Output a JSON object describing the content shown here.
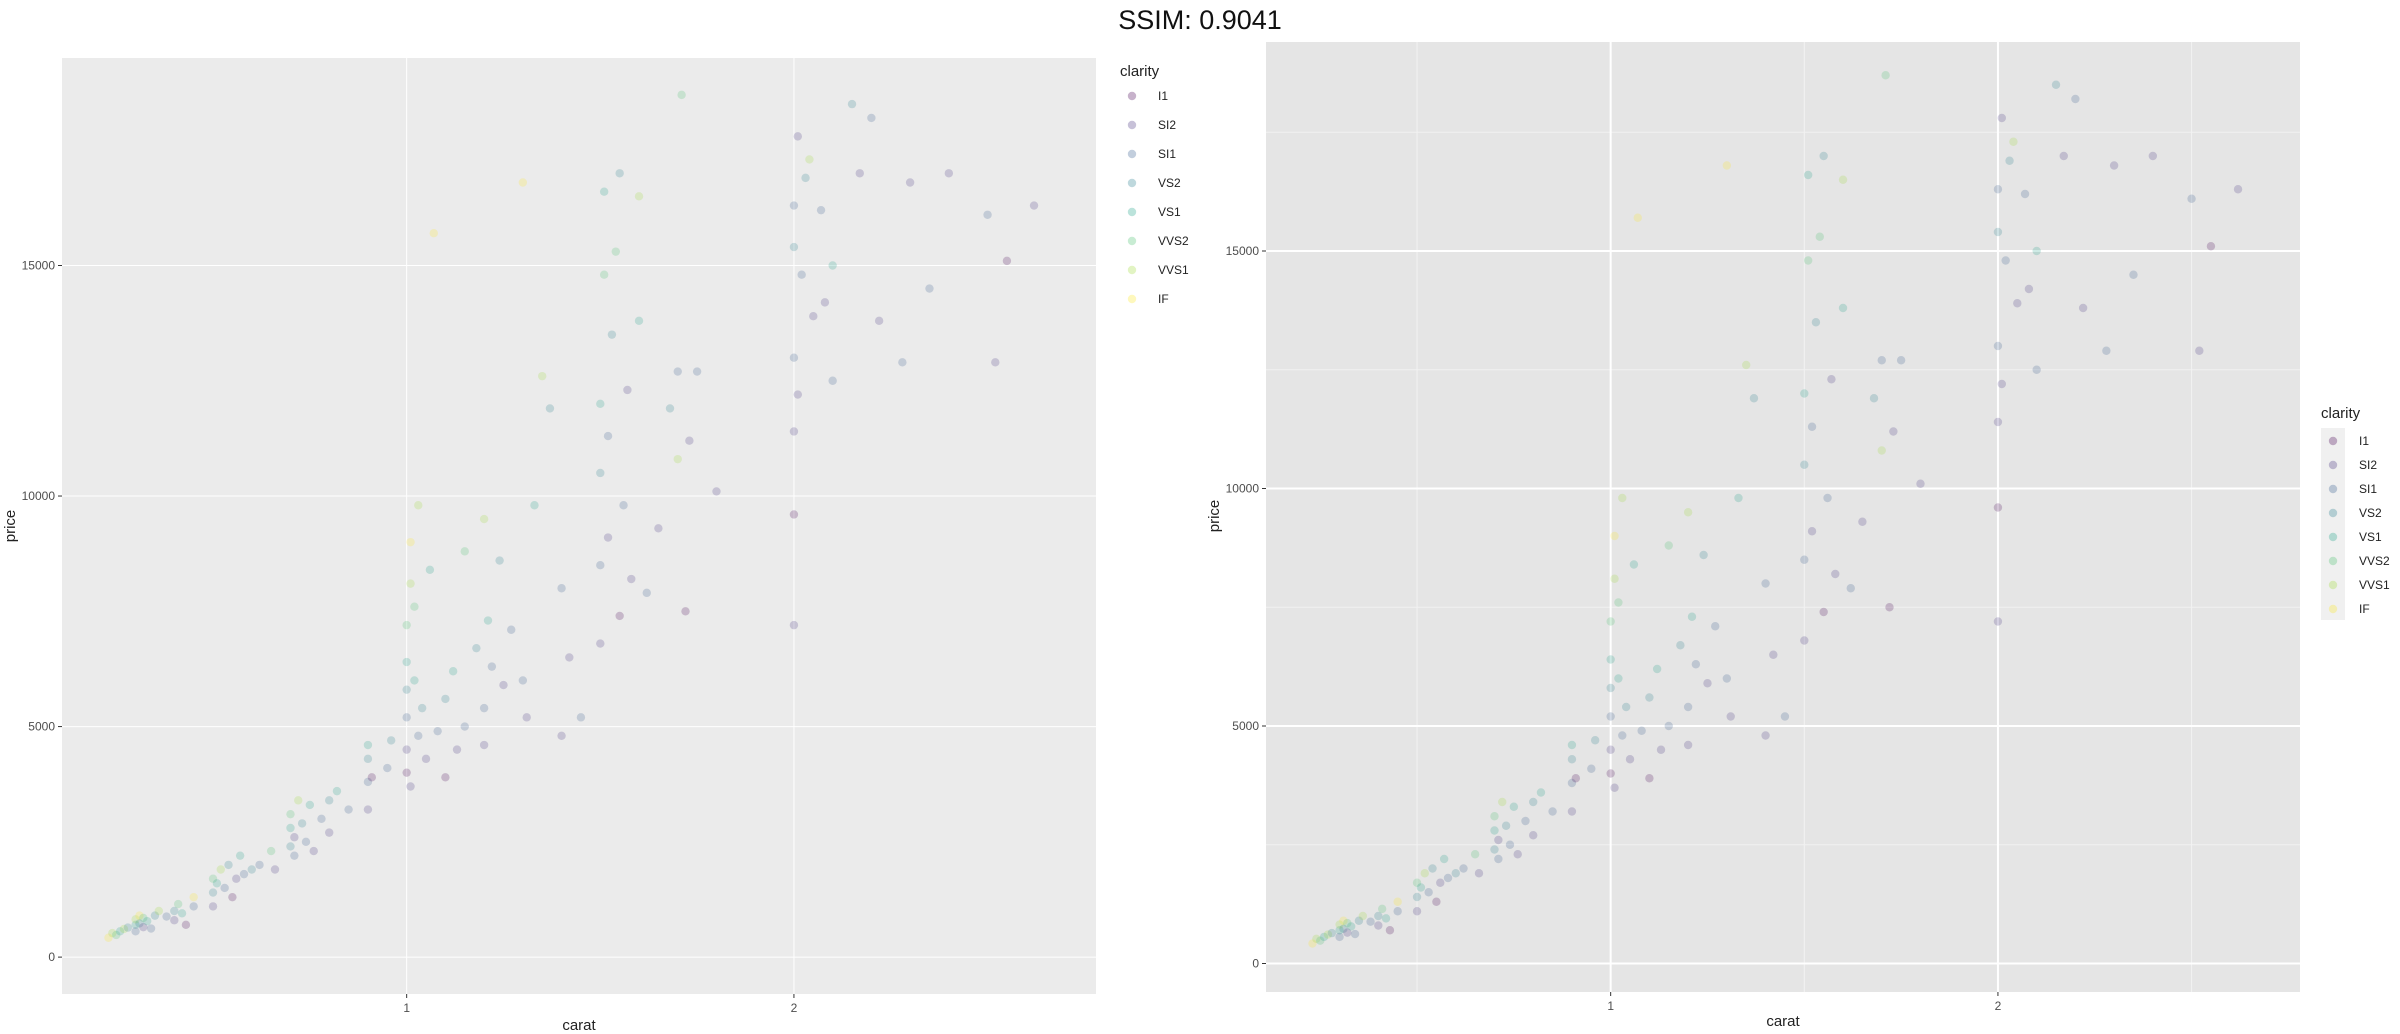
{
  "header": {
    "title": "SSIM: 0.9041"
  },
  "chart_data": [
    {
      "type": "scatter",
      "title": "",
      "xlabel": "carat",
      "ylabel": "price",
      "xlim": [
        0.11,
        2.78
      ],
      "ylim": [
        -800,
        19500
      ],
      "x_ticks": [
        1,
        2
      ],
      "y_ticks": [
        0,
        5000,
        10000,
        15000
      ],
      "x_tick_labels": [
        "1",
        "2"
      ],
      "y_tick_labels": [
        "0",
        "5000",
        "10000",
        "15000"
      ],
      "grid": true,
      "minor_grid": false,
      "legend": {
        "title": "clarity",
        "position": "right-top",
        "boxed": false
      },
      "point_opacity": 0.22
    },
    {
      "type": "scatter",
      "title": "",
      "xlabel": "carat",
      "ylabel": "price",
      "xlim": [
        0.11,
        2.78
      ],
      "ylim": [
        -600,
        19400
      ],
      "x_ticks": [
        1,
        2
      ],
      "y_ticks": [
        0,
        5000,
        10000,
        15000
      ],
      "x_tick_labels": [
        "1",
        "2"
      ],
      "y_tick_labels": [
        "0",
        "5000",
        "10000",
        "15000"
      ],
      "grid": true,
      "minor_grid": true,
      "legend": {
        "title": "clarity",
        "position": "right-center",
        "boxed": true
      },
      "point_opacity": 0.22
    }
  ],
  "clarity_levels": [
    {
      "name": "I1",
      "color": "#440154"
    },
    {
      "name": "SI2",
      "color": "#46337e"
    },
    {
      "name": "SI1",
      "color": "#365c8d"
    },
    {
      "name": "VS2",
      "color": "#277f8e"
    },
    {
      "name": "VS1",
      "color": "#1fa187"
    },
    {
      "name": "VVS2",
      "color": "#4ac16d"
    },
    {
      "name": "VVS1",
      "color": "#a0da39"
    },
    {
      "name": "IF",
      "color": "#fde725"
    }
  ],
  "points": [
    [
      0.23,
      420,
      "IF"
    ],
    [
      0.24,
      520,
      "VVS1"
    ],
    [
      0.25,
      480,
      "VVS2"
    ],
    [
      0.26,
      560,
      "VS1"
    ],
    [
      0.27,
      610,
      "VVS1"
    ],
    [
      0.28,
      640,
      "VS2"
    ],
    [
      0.3,
      700,
      "VS1"
    ],
    [
      0.3,
      560,
      "SI1"
    ],
    [
      0.3,
      820,
      "VVS1"
    ],
    [
      0.31,
      730,
      "VS2"
    ],
    [
      0.31,
      900,
      "IF"
    ],
    [
      0.32,
      650,
      "SI2"
    ],
    [
      0.32,
      850,
      "VVS2"
    ],
    [
      0.33,
      780,
      "VS1"
    ],
    [
      0.34,
      620,
      "SI1"
    ],
    [
      0.35,
      900,
      "VS2"
    ],
    [
      0.36,
      1000,
      "VVS1"
    ],
    [
      0.38,
      880,
      "SI1"
    ],
    [
      0.4,
      1000,
      "VS2"
    ],
    [
      0.4,
      800,
      "SI2"
    ],
    [
      0.41,
      1150,
      "VVS2"
    ],
    [
      0.42,
      950,
      "VS1"
    ],
    [
      0.43,
      700,
      "I1"
    ],
    [
      0.45,
      1100,
      "SI1"
    ],
    [
      0.45,
      1300,
      "IF"
    ],
    [
      0.5,
      1400,
      "VS2"
    ],
    [
      0.5,
      1100,
      "SI2"
    ],
    [
      0.5,
      1700,
      "VVS2"
    ],
    [
      0.51,
      1600,
      "VS1"
    ],
    [
      0.52,
      1900,
      "VVS1"
    ],
    [
      0.53,
      1500,
      "SI1"
    ],
    [
      0.54,
      2000,
      "VS2"
    ],
    [
      0.55,
      1300,
      "I1"
    ],
    [
      0.56,
      1700,
      "SI2"
    ],
    [
      0.57,
      2200,
      "VS1"
    ],
    [
      0.58,
      1800,
      "SI1"
    ],
    [
      0.6,
      1900,
      "VS2"
    ],
    [
      0.62,
      2000,
      "SI1"
    ],
    [
      0.65,
      2300,
      "VVS2"
    ],
    [
      0.66,
      1900,
      "SI2"
    ],
    [
      0.7,
      2400,
      "VS2"
    ],
    [
      0.7,
      2800,
      "VS1"
    ],
    [
      0.7,
      3100,
      "VVS2"
    ],
    [
      0.71,
      2200,
      "SI1"
    ],
    [
      0.72,
      3400,
      "VVS1"
    ],
    [
      0.71,
      2600,
      "SI2"
    ],
    [
      0.73,
      2900,
      "VS2"
    ],
    [
      0.74,
      2500,
      "SI1"
    ],
    [
      0.75,
      3300,
      "VS1"
    ],
    [
      0.76,
      2300,
      "SI2"
    ],
    [
      0.78,
      3000,
      "SI1"
    ],
    [
      0.8,
      3400,
      "VS2"
    ],
    [
      0.8,
      2700,
      "SI2"
    ],
    [
      0.82,
      3600,
      "VS1"
    ],
    [
      0.85,
      3200,
      "SI1"
    ],
    [
      0.9,
      3800,
      "SI1"
    ],
    [
      0.9,
      4300,
      "VS2"
    ],
    [
      0.9,
      3200,
      "SI2"
    ],
    [
      0.9,
      4600,
      "VS1"
    ],
    [
      0.91,
      3900,
      "I1"
    ],
    [
      0.95,
      4100,
      "SI1"
    ],
    [
      0.96,
      4700,
      "VS2"
    ],
    [
      1.0,
      4500,
      "SI2"
    ],
    [
      1.0,
      5200,
      "SI1"
    ],
    [
      1.0,
      5800,
      "VS2"
    ],
    [
      1.0,
      6400,
      "VS1"
    ],
    [
      1.0,
      7200,
      "VVS2"
    ],
    [
      1.01,
      8100,
      "VVS1"
    ],
    [
      1.01,
      9000,
      "IF"
    ],
    [
      1.0,
      4000,
      "I1"
    ],
    [
      1.01,
      3700,
      "SI2"
    ],
    [
      1.02,
      6000,
      "VS1"
    ],
    [
      1.02,
      7600,
      "VVS2"
    ],
    [
      1.03,
      4800,
      "SI1"
    ],
    [
      1.03,
      9800,
      "VVS1"
    ],
    [
      1.04,
      5400,
      "VS2"
    ],
    [
      1.05,
      4300,
      "SI2"
    ],
    [
      1.06,
      8400,
      "VS1"
    ],
    [
      1.07,
      15700,
      "IF"
    ],
    [
      1.08,
      4900,
      "SI1"
    ],
    [
      1.1,
      5600,
      "VS2"
    ],
    [
      1.1,
      3900,
      "I1"
    ],
    [
      1.12,
      6200,
      "VS1"
    ],
    [
      1.13,
      4500,
      "SI2"
    ],
    [
      1.15,
      5000,
      "SI1"
    ],
    [
      1.15,
      8800,
      "VVS2"
    ],
    [
      1.18,
      6700,
      "VS2"
    ],
    [
      1.2,
      5400,
      "SI1"
    ],
    [
      1.2,
      4600,
      "SI2"
    ],
    [
      1.2,
      9500,
      "VVS1"
    ],
    [
      1.21,
      7300,
      "VS1"
    ],
    [
      1.22,
      6300,
      "SI1"
    ],
    [
      1.24,
      8600,
      "VS2"
    ],
    [
      1.25,
      5900,
      "SI2"
    ],
    [
      1.27,
      7100,
      "SI1"
    ],
    [
      1.3,
      16800,
      "IF"
    ],
    [
      1.3,
      6000,
      "SI1"
    ],
    [
      1.31,
      5200,
      "SI2"
    ],
    [
      1.33,
      9800,
      "VS1"
    ],
    [
      1.35,
      12600,
      "VVS1"
    ],
    [
      1.37,
      11900,
      "VS2"
    ],
    [
      1.4,
      4800,
      "SI2"
    ],
    [
      1.4,
      8000,
      "SI1"
    ],
    [
      1.42,
      6500,
      "SI2"
    ],
    [
      1.45,
      5200,
      "SI1"
    ],
    [
      1.5,
      6800,
      "SI2"
    ],
    [
      1.5,
      8500,
      "SI1"
    ],
    [
      1.5,
      10500,
      "VS2"
    ],
    [
      1.5,
      12000,
      "VS1"
    ],
    [
      1.51,
      14800,
      "VVS2"
    ],
    [
      1.51,
      16600,
      "VS1"
    ],
    [
      1.52,
      9100,
      "SI2"
    ],
    [
      1.52,
      11300,
      "SI1"
    ],
    [
      1.53,
      13500,
      "VS2"
    ],
    [
      1.54,
      15300,
      "VVS2"
    ],
    [
      1.55,
      17000,
      "VS2"
    ],
    [
      1.55,
      7400,
      "I1"
    ],
    [
      1.56,
      9800,
      "SI1"
    ],
    [
      1.57,
      12300,
      "SI2"
    ],
    [
      1.58,
      8200,
      "SI2"
    ],
    [
      1.6,
      13800,
      "VS1"
    ],
    [
      1.6,
      16500,
      "VVS1"
    ],
    [
      1.62,
      7900,
      "SI1"
    ],
    [
      1.65,
      9300,
      "SI2"
    ],
    [
      1.68,
      11900,
      "VS2"
    ],
    [
      1.7,
      12700,
      "SI1"
    ],
    [
      1.7,
      10800,
      "VVS1"
    ],
    [
      1.71,
      18700,
      "VVS2"
    ],
    [
      1.72,
      7500,
      "I1"
    ],
    [
      1.73,
      11200,
      "SI2"
    ],
    [
      1.75,
      12700,
      "SI1"
    ],
    [
      1.8,
      10100,
      "SI2"
    ],
    [
      2.0,
      7200,
      "SI2"
    ],
    [
      2.0,
      9600,
      "I1"
    ],
    [
      2.0,
      11400,
      "SI2"
    ],
    [
      2.0,
      13000,
      "SI1"
    ],
    [
      2.0,
      15400,
      "VS2"
    ],
    [
      2.0,
      16300,
      "SI1"
    ],
    [
      2.01,
      17800,
      "SI2"
    ],
    [
      2.01,
      12200,
      "SI2"
    ],
    [
      2.02,
      14800,
      "SI1"
    ],
    [
      2.03,
      16900,
      "VS2"
    ],
    [
      2.04,
      17300,
      "VVS1"
    ],
    [
      2.05,
      13900,
      "SI2"
    ],
    [
      2.07,
      16200,
      "SI1"
    ],
    [
      2.08,
      14200,
      "SI2"
    ],
    [
      2.1,
      15000,
      "VS1"
    ],
    [
      2.1,
      12500,
      "SI1"
    ],
    [
      2.15,
      18500,
      "VS2"
    ],
    [
      2.17,
      17000,
      "SI2"
    ],
    [
      2.2,
      18200,
      "SI1"
    ],
    [
      2.22,
      13800,
      "SI2"
    ],
    [
      2.28,
      12900,
      "SI1"
    ],
    [
      2.3,
      16800,
      "SI2"
    ],
    [
      2.35,
      14500,
      "SI1"
    ],
    [
      2.4,
      17000,
      "SI2"
    ],
    [
      2.5,
      16100,
      "SI1"
    ],
    [
      2.52,
      12900,
      "SI2"
    ],
    [
      2.55,
      15100,
      "I1"
    ],
    [
      2.62,
      16300,
      "SI2"
    ]
  ]
}
